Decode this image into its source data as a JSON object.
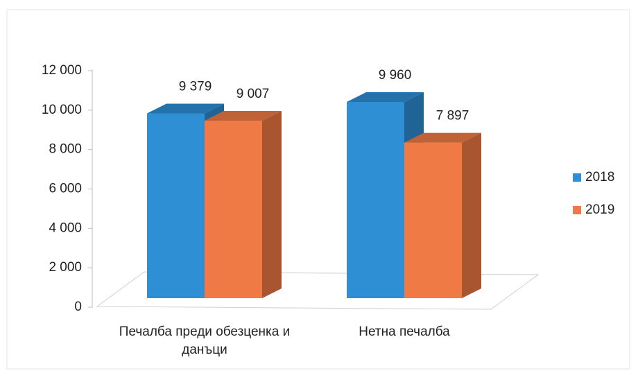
{
  "chart_data": {
    "type": "bar3d",
    "categories": [
      "Печалба преди обезценка и данъци",
      "Нетна печалба"
    ],
    "series": [
      {
        "name": "2018",
        "color": "#2e8fd5",
        "values": [
          9379,
          9960
        ],
        "value_labels": [
          "9 379",
          "9 960"
        ]
      },
      {
        "name": "2019",
        "color": "#f07a45",
        "values": [
          9007,
          7897
        ],
        "value_labels": [
          "9 007",
          "7 897"
        ]
      }
    ],
    "ylim": [
      0,
      12000
    ],
    "yticks": [
      0,
      {
        "value": 2000,
        "label": "2 000"
      },
      {
        "value": 4000,
        "label": "4 000"
      },
      {
        "value": 6000,
        "label": "6 000"
      },
      {
        "value": 8000,
        "label": "8 000"
      },
      {
        "value": 10000,
        "label": "10 000"
      },
      {
        "value": 12000,
        "label": "12 000"
      }
    ],
    "legend": "right"
  }
}
